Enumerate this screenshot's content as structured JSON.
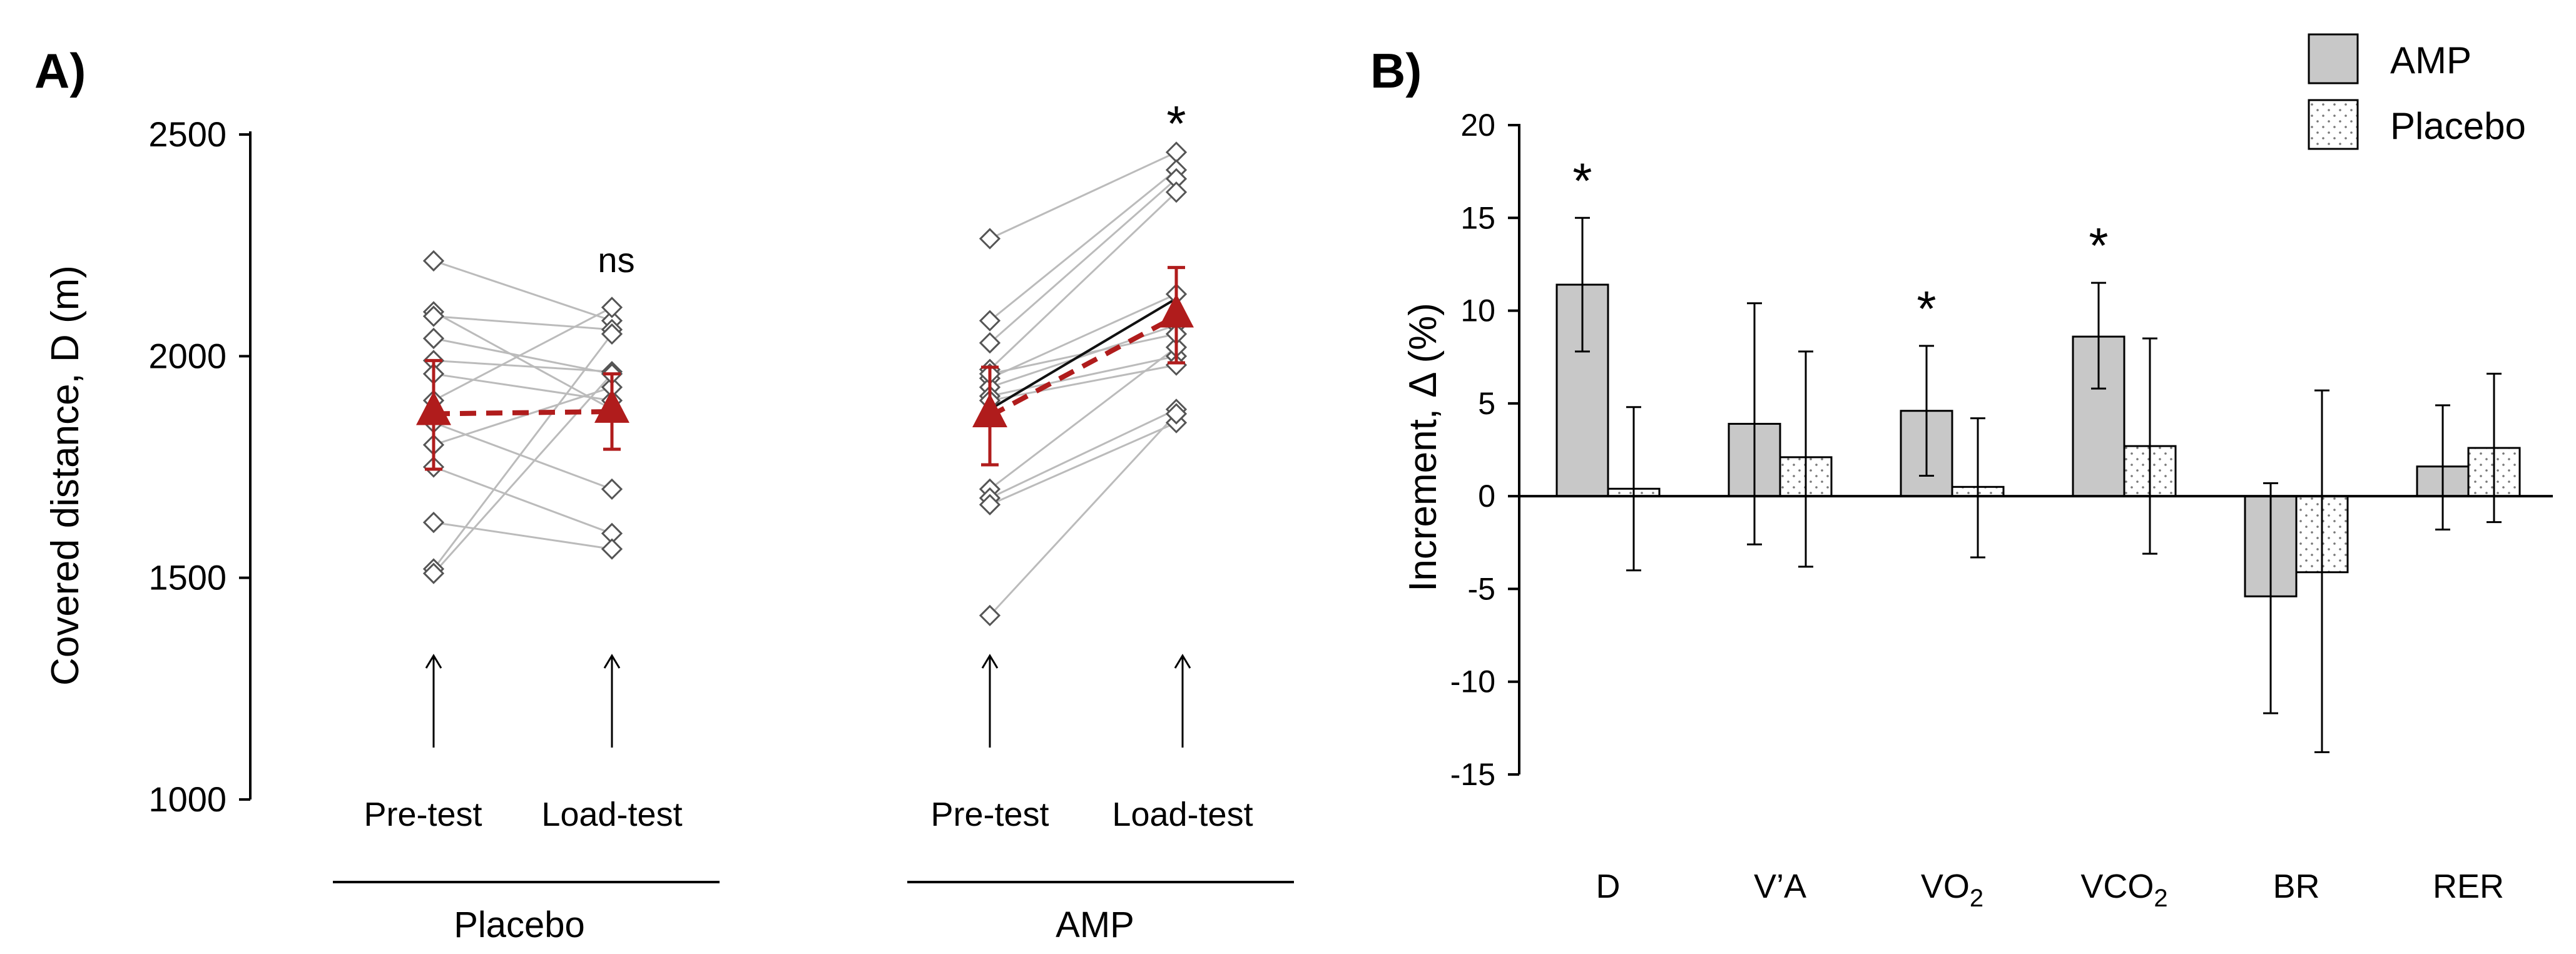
{
  "chart_data": [
    {
      "panel": "A)",
      "type": "scatter",
      "ylabel": "Covered distance, D (m)",
      "ylim": [
        1000,
        2500
      ],
      "yticks": [
        1000,
        1500,
        2000,
        2500
      ],
      "groups": [
        {
          "name": "Placebo",
          "conditions": [
            "Pre-test",
            "Load-test"
          ],
          "individual_pre": [
            2215,
            2100,
            2090,
            2040,
            1990,
            1960,
            1900,
            1850,
            1800,
            1750,
            1625,
            1520,
            1510
          ],
          "individual_load": [
            2080,
            1880,
            2060,
            1960,
            1965,
            1900,
            2110,
            1700,
            1930,
            1600,
            1565,
            2050,
            1960
          ],
          "mean": [
            1870,
            1875
          ],
          "sd_low": [
            1745,
            1790
          ],
          "sd_high": [
            1990,
            1960
          ],
          "annotation": "ns"
        },
        {
          "name": "AMP",
          "conditions": [
            "Pre-test",
            "Load-test"
          ],
          "individual_pre": [
            2265,
            2080,
            2030,
            1970,
            1950,
            1930,
            1910,
            1900,
            1700,
            1680,
            1665,
            1415,
            1960
          ],
          "individual_load": [
            2460,
            2420,
            2400,
            2370,
            2140,
            2070,
            2000,
            1980,
            2020,
            1880,
            1850,
            1870,
            2050
          ],
          "highlight_pair": [
            1880,
            2130
          ],
          "mean": [
            1865,
            2090
          ],
          "sd_low": [
            1755,
            1985
          ],
          "sd_high": [
            1975,
            2200
          ],
          "annotation": "*"
        }
      ],
      "arrow_labels": [
        "↑",
        "↑",
        "↑",
        "↑"
      ]
    },
    {
      "panel": "B)",
      "type": "bar",
      "ylabel": "Increment, Δ (%)",
      "ylim": [
        -15,
        20
      ],
      "yticks": [
        20,
        15,
        10,
        5,
        0,
        -5,
        -10,
        -15
      ],
      "categories": [
        "D",
        "V’A",
        "VO2",
        "VCO2",
        "BR",
        "RER"
      ],
      "series": [
        {
          "name": "AMP",
          "values": [
            11.4,
            3.9,
            4.6,
            8.6,
            -5.4,
            1.6
          ],
          "err_low": [
            7.8,
            -2.6,
            1.1,
            5.8,
            -11.7,
            -1.8
          ],
          "err_high": [
            15.0,
            10.4,
            8.1,
            11.5,
            0.7,
            4.9
          ]
        },
        {
          "name": "Placebo",
          "values": [
            0.4,
            2.1,
            0.5,
            2.7,
            -4.1,
            2.6
          ],
          "err_low": [
            -4.0,
            -3.8,
            -3.3,
            -3.1,
            -13.8,
            -1.4
          ],
          "err_high": [
            4.8,
            7.8,
            4.2,
            8.5,
            5.7,
            6.6
          ]
        }
      ],
      "significance": [
        "*",
        "",
        "*",
        "*",
        "",
        ""
      ],
      "legend": [
        "AMP",
        "Placebo"
      ]
    }
  ]
}
